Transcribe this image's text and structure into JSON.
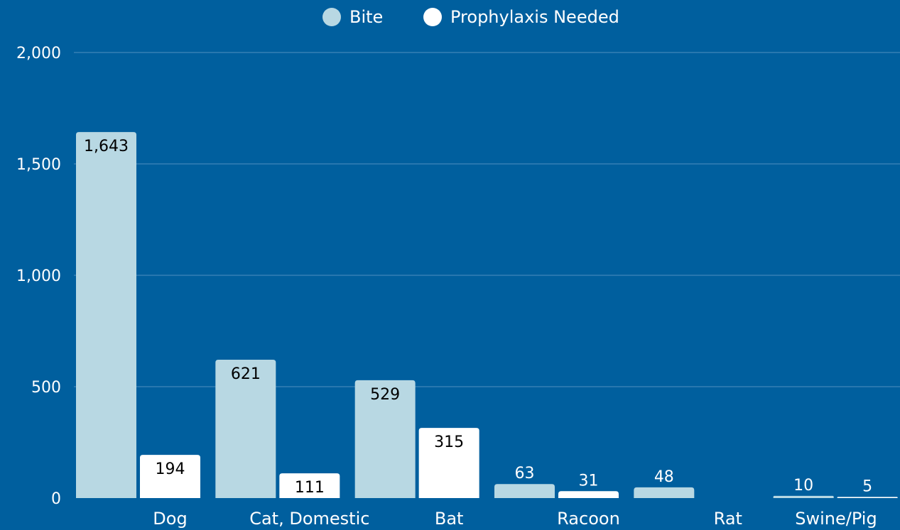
{
  "chart_data": {
    "type": "bar",
    "categories": [
      "Dog",
      "Cat, Domestic",
      "Bat",
      "Racoon",
      "Rat",
      "Swine/Pig"
    ],
    "series": [
      {
        "name": "Bite",
        "values": [
          1643,
          621,
          529,
          63,
          48,
          10
        ],
        "labels": [
          "1,643",
          "621",
          "529",
          "63",
          "48",
          "10"
        ],
        "color": "#b8d8e3"
      },
      {
        "name": "Prophylaxis Needed",
        "values": [
          194,
          111,
          315,
          31,
          null,
          5
        ],
        "labels": [
          "194",
          "111",
          "315",
          "31",
          "",
          "5"
        ],
        "color": "#ffffff"
      }
    ],
    "ylim": [
      0,
      2000
    ],
    "yticks": [
      0,
      500,
      1000,
      1500,
      2000
    ],
    "ytick_labels": [
      "0",
      "500",
      "1,000",
      "1,500",
      "2,000"
    ],
    "title": "",
    "xlabel": "",
    "ylabel": "",
    "grid": true,
    "legend_position": "top-center",
    "background": "#005f9e",
    "gridline_color": "#4f8fc0",
    "label_color": "#ffffff",
    "data_label_color": "#000000"
  }
}
